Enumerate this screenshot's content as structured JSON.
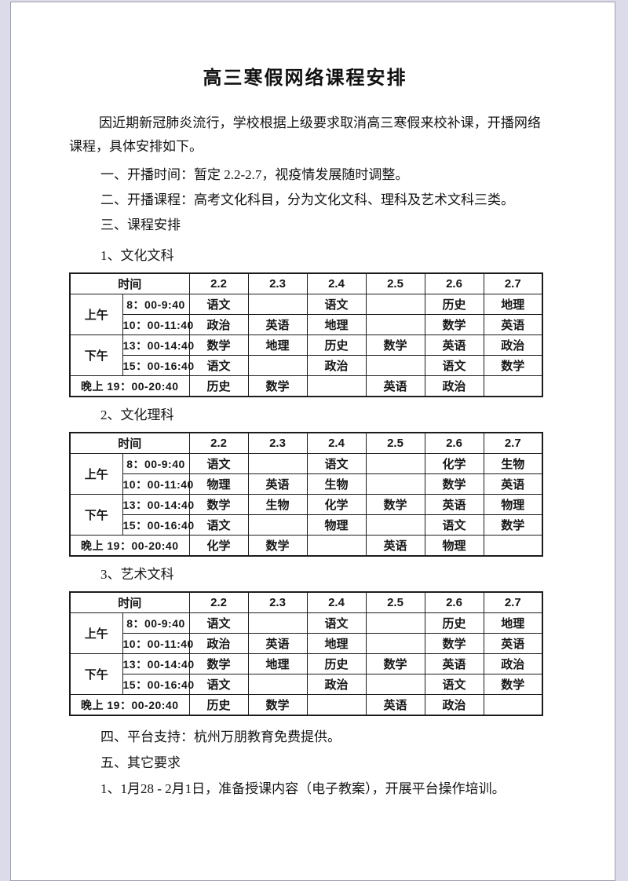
{
  "document": {
    "title": "高三寒假网络课程安排",
    "intro": "因近期新冠肺炎流行，学校根据上级要求取消高三寒假来校补课，开播网络课程，具体安排如下。",
    "items": [
      "一、开播时间：暂定 2.2-2.7，视疫情发展随时调整。",
      "二、开播课程：高考文化科目，分为文化文科、理科及艺术文科三类。",
      "三、课程安排"
    ],
    "sections": [
      {
        "label": "1、文化文科",
        "table": {
          "time_header": "时间",
          "date_columns": [
            "2.2",
            "2.3",
            "2.4",
            "2.5",
            "2.6",
            "2.7"
          ],
          "rows": [
            {
              "period": "上午",
              "span": 2,
              "time": "8：00-9:40",
              "cells": [
                "语文",
                "",
                "语文",
                "",
                "历史",
                "地理"
              ]
            },
            {
              "time": "10：00-11:40",
              "cells": [
                "政治",
                "英语",
                "地理",
                "",
                "数学",
                "英语"
              ]
            },
            {
              "period": "下午",
              "span": 2,
              "time": "13：00-14:40",
              "cells": [
                "数学",
                "地理",
                "历史",
                "数学",
                "英语",
                "政治"
              ]
            },
            {
              "time": "15：00-16:40",
              "cells": [
                "语文",
                "",
                "政治",
                "",
                "语文",
                "数学"
              ]
            },
            {
              "merged": "晚上 19：00-20:40",
              "cells": [
                "历史",
                "数学",
                "",
                "英语",
                "政治",
                ""
              ]
            }
          ]
        }
      },
      {
        "label": "2、文化理科",
        "table": {
          "time_header": "时间",
          "date_columns": [
            "2.2",
            "2.3",
            "2.4",
            "2.5",
            "2.6",
            "2.7"
          ],
          "rows": [
            {
              "period": "上午",
              "span": 2,
              "time": "8：00-9:40",
              "cells": [
                "语文",
                "",
                "语文",
                "",
                "化学",
                "生物"
              ]
            },
            {
              "time": "10：00-11:40",
              "cells": [
                "物理",
                "英语",
                "生物",
                "",
                "数学",
                "英语"
              ]
            },
            {
              "period": "下午",
              "span": 2,
              "time": "13：00-14:40",
              "cells": [
                "数学",
                "生物",
                "化学",
                "数学",
                "英语",
                "物理"
              ]
            },
            {
              "time": "15：00-16:40",
              "cells": [
                "语文",
                "",
                "物理",
                "",
                "语文",
                "数学"
              ]
            },
            {
              "merged": "晚上 19：00-20:40",
              "cells": [
                "化学",
                "数学",
                "",
                "英语",
                "物理",
                ""
              ]
            }
          ]
        }
      },
      {
        "label": "3、艺术文科",
        "table": {
          "time_header": "时间",
          "date_columns": [
            "2.2",
            "2.3",
            "2.4",
            "2.5",
            "2.6",
            "2.7"
          ],
          "rows": [
            {
              "period": "上午",
              "span": 2,
              "time": "8：00-9:40",
              "cells": [
                "语文",
                "",
                "语文",
                "",
                "历史",
                "地理"
              ]
            },
            {
              "time": "10：00-11:40",
              "cells": [
                "政治",
                "英语",
                "地理",
                "",
                "数学",
                "英语"
              ]
            },
            {
              "period": "下午",
              "span": 2,
              "time": "13：00-14:40",
              "cells": [
                "数学",
                "地理",
                "历史",
                "数学",
                "英语",
                "政治"
              ]
            },
            {
              "time": "15：00-16:40",
              "cells": [
                "语文",
                "",
                "政治",
                "",
                "语文",
                "数学"
              ]
            },
            {
              "merged": "晚上 19：00-20:40",
              "cells": [
                "历史",
                "数学",
                "",
                "英语",
                "政治",
                ""
              ]
            }
          ]
        }
      }
    ],
    "footer_items": [
      "四、平台支持：杭州万朋教育免费提供。",
      "五、其它要求",
      "1、1月28 - 2月1日，准备授课内容（电子教案），开展平台操作培训。"
    ],
    "colors": {
      "page_background": "#ffffff",
      "desk_background": "#dbdbe9",
      "table_border": "#1c1c1c",
      "text": "#151515"
    }
  }
}
